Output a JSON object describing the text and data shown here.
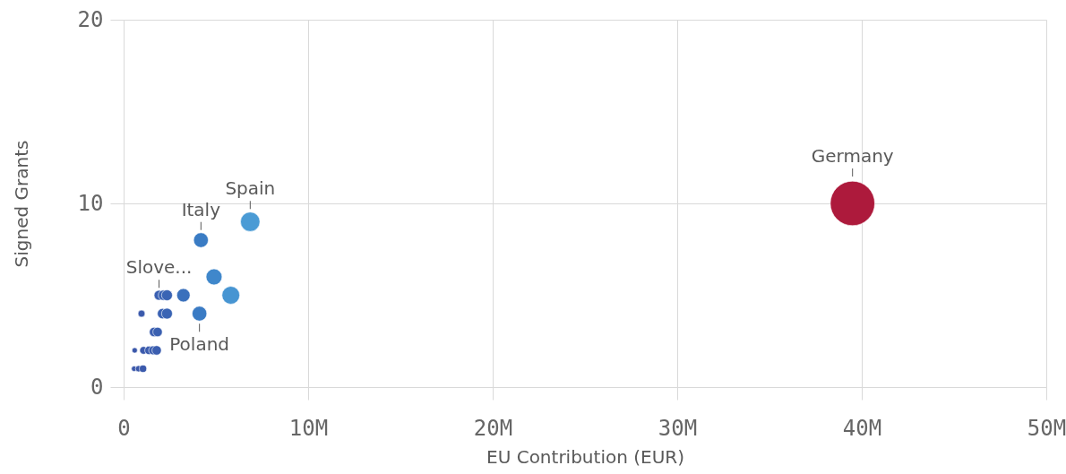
{
  "chart_data": {
    "type": "bubble",
    "xlabel": "EU Contribution (EUR)",
    "ylabel": "Signed Grants",
    "x": [
      570000,
      810000,
      1050000,
      600000,
      1080000,
      1370000,
      1600000,
      1790000,
      1650000,
      1840000,
      970000,
      2110000,
      2350000,
      4110000,
      1920000,
      2160000,
      2350000,
      3240000,
      5810000,
      4900000,
      4190000,
      6860000,
      39500000
    ],
    "values": [
      1,
      1,
      1,
      2,
      2,
      2,
      2,
      2,
      3,
      3,
      4,
      4,
      4,
      4,
      5,
      5,
      5,
      5,
      5,
      6,
      8,
      9,
      10
    ],
    "sizes": [
      0.015,
      0.02,
      0.027,
      0.015,
      0.03,
      0.035,
      0.04,
      0.045,
      0.045,
      0.045,
      0.025,
      0.055,
      0.06,
      0.11,
      0.05,
      0.055,
      0.06,
      0.09,
      0.16,
      0.13,
      0.11,
      0.19,
      1
    ],
    "colors": [
      "#3b58aa",
      "#3b58aa",
      "#3b5aac",
      "#3b58aa",
      "#3b5aac",
      "#3b5cae",
      "#3b5eaf",
      "#3b5eaf",
      "#3b5eb0",
      "#3b60b0",
      "#3b5aac",
      "#3a62b3",
      "#3a64b4",
      "#3a7bc4",
      "#3a60b2",
      "#3a62b3",
      "#3a64b4",
      "#3a70bc",
      "#4795d2",
      "#3f87cb",
      "#3a7cc4",
      "#4a9bd5",
      "#ad1a3c"
    ],
    "xlim": [
      0,
      50000000
    ],
    "xticks": [
      0,
      {
        "value": 10000000,
        "label": "10M"
      },
      {
        "value": 20000000,
        "label": "20M"
      },
      {
        "value": 30000000,
        "label": "30M"
      },
      {
        "value": 40000000,
        "label": "40M"
      },
      {
        "value": 50000000,
        "label": "50M"
      }
    ],
    "ylim": [
      0,
      20
    ],
    "yticks": [
      0,
      10,
      20
    ],
    "grid": true,
    "annotations": [
      {
        "text": "Germany",
        "x": 39500000,
        "y": 10
      },
      {
        "text": "Spain",
        "x": 6860000,
        "y": 9
      },
      {
        "text": "Italy",
        "x": 4190000,
        "y": 8
      },
      {
        "text": "Slove...",
        "x": 1920000,
        "y": 5
      },
      {
        "text": "Poland",
        "x": 4110000,
        "y": 4
      }
    ]
  }
}
